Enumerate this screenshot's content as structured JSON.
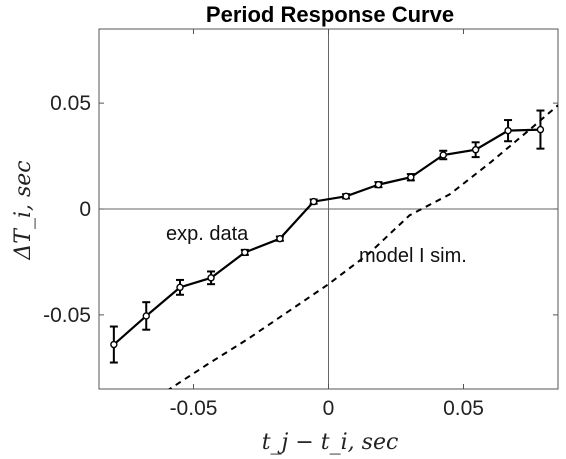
{
  "chart_data": {
    "type": "line",
    "title": "Period Response Curve",
    "xlabel": "t_j − t_i, sec",
    "ylabel": "ΔT_i, sec",
    "xlim": [
      -0.085,
      0.085
    ],
    "ylim": [
      -0.085,
      0.085
    ],
    "xticks": [
      -0.05,
      0,
      0.05
    ],
    "yticks": [
      -0.05,
      0,
      0.05
    ],
    "xtick_labels": [
      "-0.05",
      "0",
      "0.05"
    ],
    "ytick_labels": [
      "-0.05",
      "0",
      "0.05"
    ],
    "zero_lines": true,
    "grid": false,
    "series": [
      {
        "name": "exp. data",
        "style": "solid-with-errorbars",
        "marker": "circle",
        "color": "#000000",
        "x": [
          -0.0795,
          -0.0675,
          -0.055,
          -0.0435,
          -0.031,
          -0.018,
          -0.0055,
          0.0065,
          0.0185,
          0.0305,
          0.0425,
          0.0545,
          0.0665,
          0.0785
        ],
        "y": [
          -0.064,
          -0.0505,
          -0.037,
          -0.0325,
          -0.0205,
          -0.014,
          0.0035,
          0.006,
          0.0115,
          0.015,
          0.0255,
          0.028,
          0.037,
          0.0375
        ],
        "err": [
          0.0085,
          0.0065,
          0.0035,
          0.003,
          0.0012,
          0.001,
          0.001,
          0.001,
          0.0012,
          0.0015,
          0.002,
          0.0035,
          0.005,
          0.009
        ]
      },
      {
        "name": "model I sim.",
        "style": "dashed",
        "color": "#000000",
        "x": [
          -0.06,
          -0.045,
          -0.03,
          -0.015,
          0.0,
          0.015,
          0.03,
          0.045,
          0.06,
          0.075,
          0.085
        ],
        "y": [
          -0.086,
          -0.0735,
          -0.0615,
          -0.0485,
          -0.0355,
          -0.021,
          -0.003,
          0.007,
          0.022,
          0.038,
          0.049
        ]
      }
    ],
    "annotations": [
      "exp. data",
      "model I sim."
    ]
  }
}
